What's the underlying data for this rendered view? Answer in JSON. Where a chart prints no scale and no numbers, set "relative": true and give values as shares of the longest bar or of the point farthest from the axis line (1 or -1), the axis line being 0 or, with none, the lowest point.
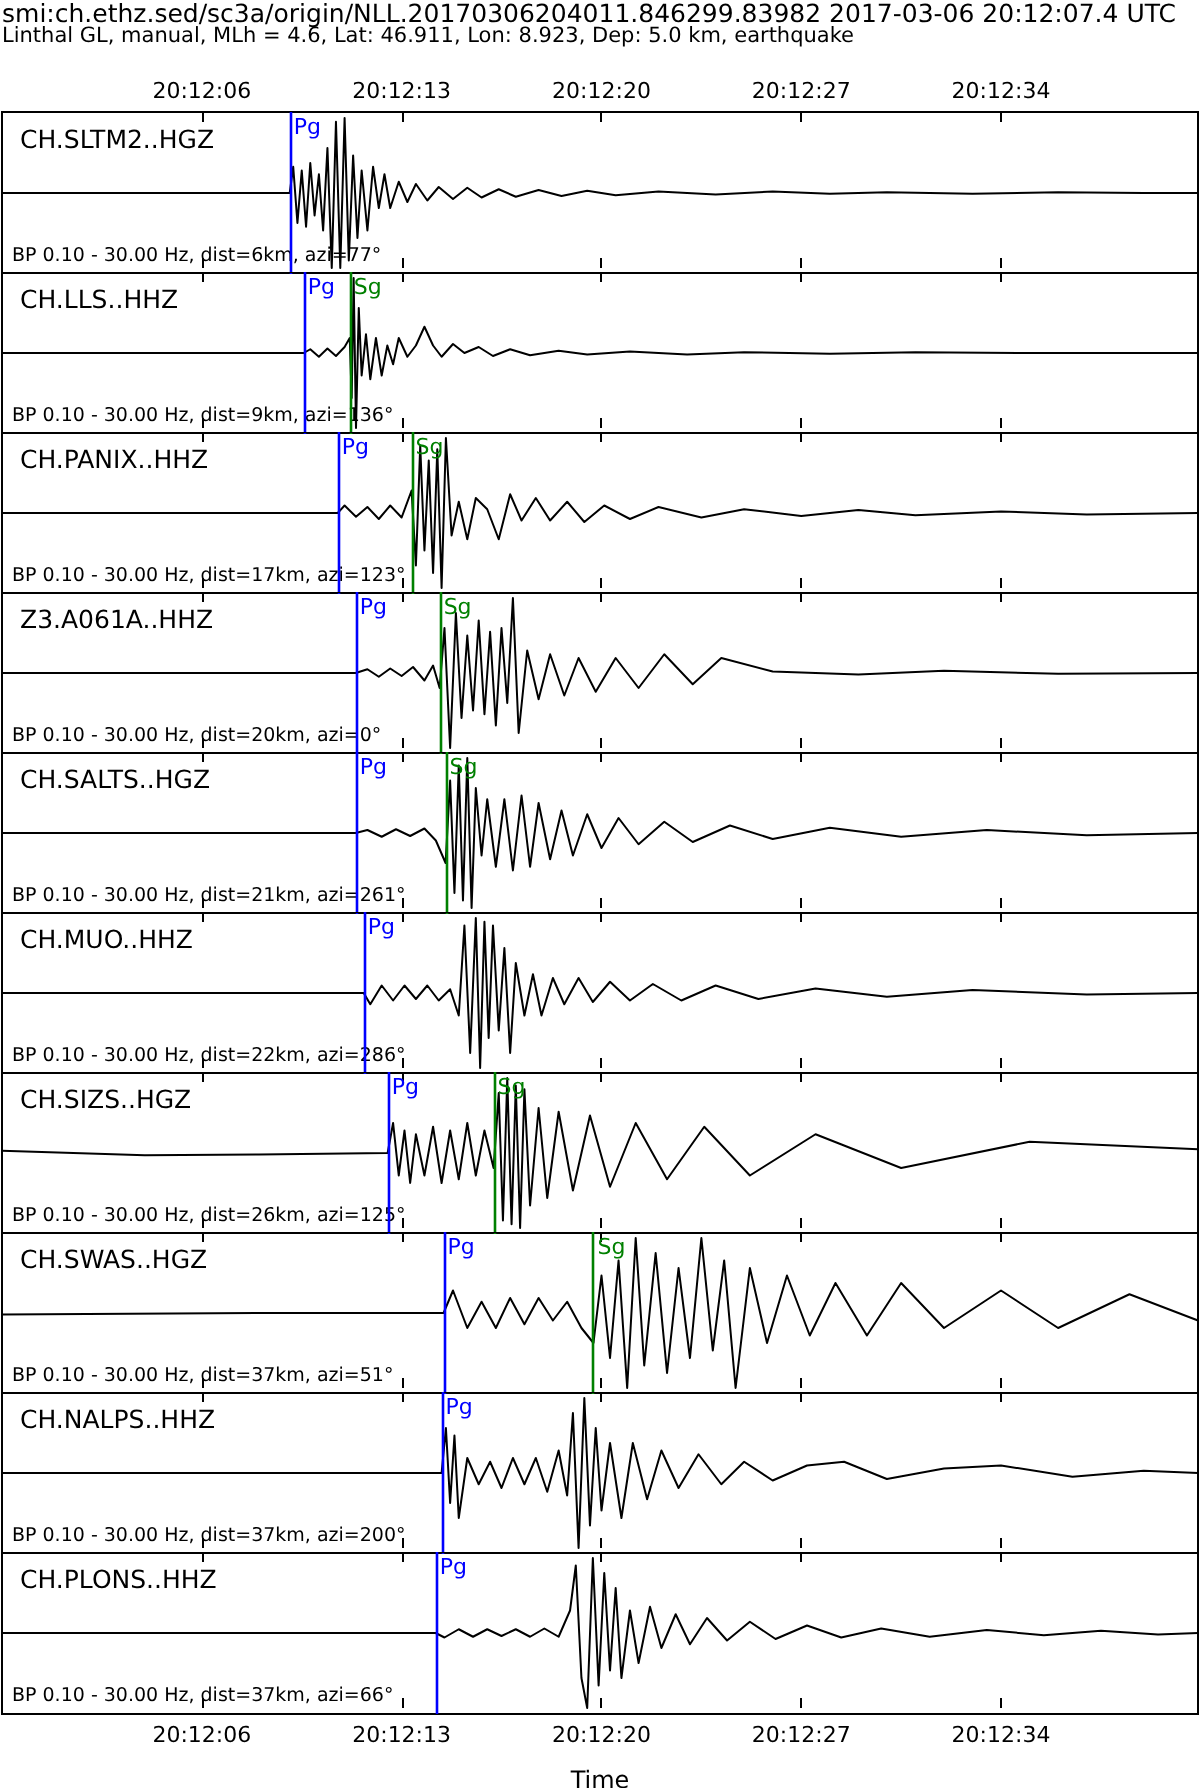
{
  "chart_data": [
    {
      "type": "other",
      "title": "smi:ch.ethz.sed/sc3a/origin/NLL.20170306204011.846299.83982 2017-03-06 20:12:07.4 UTC",
      "subtitle": "Linthal GL, manual, MLh = 4.6, Lat: 46.911, Lon: 8.923, Dep: 5.0 km, earthquake"
    },
    {
      "type": "line",
      "title": "CH.SLTM2..HGZ",
      "annotations": [
        "BP 0.10 - 30.00 Hz, dist=6km, azi=77°"
      ],
      "relative": true,
      "marker": "none",
      "line_style": "solid",
      "tick_labels": false,
      "xlim": [
        20.199722,
        20.211361
      ],
      "xticks": [
        {
          "value": 20.201667,
          "label": null
        },
        {
          "value": 20.203611,
          "label": null
        },
        {
          "value": 20.205556,
          "label": null
        },
        {
          "value": 20.2075,
          "label": null
        },
        {
          "value": 20.209444,
          "label": null
        }
      ],
      "x2lim": [
        20.199722,
        20.211361
      ],
      "x2ticks": [
        {
          "value": 20.201667,
          "label": "20:12:06"
        },
        {
          "value": 20.203611,
          "label": "20:12:13"
        },
        {
          "value": 20.205556,
          "label": "20:12:20"
        },
        {
          "value": 20.2075,
          "label": "20:12:27"
        },
        {
          "value": 20.209444,
          "label": "20:12:34"
        }
      ],
      "ref_lines": [
        {
          "axis": "x",
          "value": 20.202522,
          "label": "Pg",
          "color": "#0000ff"
        }
      ],
      "series": [
        {
          "color": "#000000",
          "x": [
            20.199722,
            20.202522,
            20.202556,
            20.202597,
            20.202639,
            20.202681,
            20.202722,
            20.202764,
            20.202806,
            20.202847,
            20.202889,
            20.202931,
            20.202972,
            20.203014,
            20.203056,
            20.203097,
            20.203139,
            20.203181,
            20.203222,
            20.203278,
            20.203333,
            20.203389,
            20.203444,
            20.2035,
            20.203583,
            20.203667,
            20.20375,
            20.203861,
            20.203972,
            20.204111,
            20.20425,
            20.204389,
            20.204556,
            20.204722,
            20.204944,
            20.205167,
            20.205417,
            20.205694,
            20.206111,
            20.206667,
            20.207222,
            20.207778,
            20.208333,
            20.209167,
            20.21,
            20.210833,
            20.211361
          ],
          "values": [
            0.5,
            0.5,
            0.675,
            0.3,
            0.65,
            0.275,
            0.7,
            0.35,
            0.625,
            0.25,
            0.8,
            0,
            0.975,
            0,
            1,
            0.05,
            0.75,
            0.2,
            0.65,
            0.25,
            0.675,
            0.4,
            0.625,
            0.4,
            0.575,
            0.44,
            0.56,
            0.45,
            0.54,
            0.46,
            0.535,
            0.47,
            0.525,
            0.475,
            0.52,
            0.48,
            0.515,
            0.485,
            0.51,
            0.49,
            0.51,
            0.495,
            0.505,
            0.495,
            0.505,
            0.5,
            0.5
          ]
        }
      ]
    },
    {
      "type": "line",
      "title": "CH.LLS..HHZ",
      "annotations": [
        "BP 0.10 - 30.00 Hz, dist=9km, azi=136°"
      ],
      "relative": true,
      "marker": "none",
      "line_style": "solid",
      "tick_labels": false,
      "xlim": [
        20.199722,
        20.211361
      ],
      "xticks": [
        {
          "value": 20.201667,
          "label": null
        },
        {
          "value": 20.203611,
          "label": null
        },
        {
          "value": 20.205556,
          "label": null
        },
        {
          "value": 20.2075,
          "label": null
        },
        {
          "value": 20.209444,
          "label": null
        }
      ],
      "ref_lines": [
        {
          "axis": "x",
          "value": 20.202658,
          "label": "Pg",
          "color": "#0000ff"
        },
        {
          "axis": "x",
          "value": 20.203106,
          "label": "Sg",
          "color": "#008000"
        }
      ],
      "series": [
        {
          "color": "#000000",
          "x": [
            20.199722,
            20.202658,
            20.202722,
            20.202806,
            20.202889,
            20.202972,
            20.203056,
            20.203106,
            20.203125,
            20.203144,
            20.203167,
            20.203194,
            20.203222,
            20.203264,
            20.203306,
            20.203361,
            20.203417,
            20.203472,
            20.203528,
            20.203583,
            20.203667,
            20.20375,
            20.203833,
            20.203917,
            20.204,
            20.204111,
            20.204222,
            20.204361,
            20.2045,
            20.204667,
            20.204861,
            20.205139,
            20.205417,
            20.205833,
            20.206389,
            20.206944,
            20.207778,
            20.208611,
            20.209722,
            20.211361
          ],
          "values": [
            0.5,
            0.5,
            0.525,
            0.475,
            0.53,
            0.48,
            0.54,
            0.6,
            0.2,
            1,
            0,
            0.8,
            0.35,
            0.625,
            0.325,
            0.6,
            0.35,
            0.55,
            0.425,
            0.6,
            0.475,
            0.55,
            0.675,
            0.55,
            0.475,
            0.56,
            0.5,
            0.54,
            0.48,
            0.525,
            0.485,
            0.515,
            0.49,
            0.51,
            0.49,
            0.505,
            0.495,
            0.505,
            0.5,
            0.5
          ]
        }
      ]
    },
    {
      "type": "line",
      "title": "CH.PANIX..HHZ",
      "annotations": [
        "BP 0.10 - 30.00 Hz, dist=17km, azi=123°"
      ],
      "relative": true,
      "marker": "none",
      "line_style": "solid",
      "tick_labels": false,
      "xlim": [
        20.199722,
        20.211361
      ],
      "xticks": [
        {
          "value": 20.201667,
          "label": null
        },
        {
          "value": 20.203611,
          "label": null
        },
        {
          "value": 20.205556,
          "label": null
        },
        {
          "value": 20.2075,
          "label": null
        },
        {
          "value": 20.209444,
          "label": null
        }
      ],
      "ref_lines": [
        {
          "axis": "x",
          "value": 20.202989,
          "label": "Pg",
          "color": "#0000ff"
        },
        {
          "axis": "x",
          "value": 20.203708,
          "label": "Sg",
          "color": "#008000"
        }
      ],
      "series": [
        {
          "color": "#000000",
          "x": [
            20.199722,
            20.202989,
            20.203056,
            20.203167,
            20.203278,
            20.203389,
            20.2035,
            20.203611,
            20.203708,
            20.20375,
            20.203792,
            20.203833,
            20.203875,
            20.203917,
            20.203958,
            20.204,
            20.204042,
            20.204097,
            20.204167,
            20.20425,
            20.204333,
            20.204444,
            20.204556,
            20.204667,
            20.204778,
            20.204917,
            20.205056,
            20.205222,
            20.205389,
            20.205583,
            20.205833,
            20.206111,
            20.206528,
            20.206944,
            20.2075,
            20.208056,
            20.208611,
            20.209444,
            20.210278,
            20.211361
          ],
          "values": [
            0.5,
            0.5,
            0.55,
            0.475,
            0.54,
            0.46,
            0.55,
            0.47,
            0.65,
            0.15,
            0.95,
            0.25,
            0.85,
            0.1,
            0.925,
            0,
            1,
            0.35,
            0.575,
            0.325,
            0.6,
            0.525,
            0.325,
            0.625,
            0.45,
            0.6,
            0.45,
            0.575,
            0.44,
            0.55,
            0.46,
            0.54,
            0.47,
            0.525,
            0.48,
            0.52,
            0.485,
            0.51,
            0.49,
            0.5
          ]
        }
      ]
    },
    {
      "type": "line",
      "title": "Z3.A061A..HHZ",
      "annotations": [
        "BP 0.10 - 30.00 Hz, dist=20km, azi=0°"
      ],
      "relative": true,
      "marker": "none",
      "line_style": "solid",
      "tick_labels": false,
      "xlim": [
        20.199722,
        20.211361
      ],
      "xticks": [
        {
          "value": 20.201667,
          "label": null
        },
        {
          "value": 20.203611,
          "label": null
        },
        {
          "value": 20.205556,
          "label": null
        },
        {
          "value": 20.2075,
          "label": null
        },
        {
          "value": 20.209444,
          "label": null
        }
      ],
      "ref_lines": [
        {
          "axis": "x",
          "value": 20.203164,
          "label": "Pg",
          "color": "#0000ff"
        },
        {
          "axis": "x",
          "value": 20.203981,
          "label": "Sg",
          "color": "#008000"
        }
      ],
      "series": [
        {
          "color": "#000000",
          "x": [
            20.199722,
            20.203164,
            20.203278,
            20.203389,
            20.2035,
            20.203611,
            20.203722,
            20.203833,
            20.203917,
            20.203981,
            20.204028,
            20.204083,
            20.204139,
            20.204194,
            20.20425,
            20.204306,
            20.204361,
            20.204417,
            20.204472,
            20.204528,
            20.204583,
            20.204639,
            20.204694,
            20.20475,
            20.204833,
            20.204944,
            20.205056,
            20.205194,
            20.205333,
            20.2055,
            20.205694,
            20.205917,
            20.206167,
            20.206444,
            20.206722,
            20.207222,
            20.208056,
            20.208889,
            20.21,
            20.211361
          ],
          "values": [
            0.5,
            0.5,
            0.525,
            0.475,
            0.53,
            0.48,
            0.54,
            0.45,
            0.55,
            0.4,
            0.8,
            0,
            0.9,
            0.2,
            0.75,
            0.25,
            0.85,
            0.225,
            0.775,
            0.15,
            0.8,
            0.3,
            1,
            0.1,
            0.65,
            0.325,
            0.625,
            0.35,
            0.6,
            0.375,
            0.6,
            0.4,
            0.625,
            0.425,
            0.6,
            0.51,
            0.49,
            0.515,
            0.495,
            0.5
          ]
        }
      ]
    },
    {
      "type": "line",
      "title": "CH.SALTS..HGZ",
      "annotations": [
        "BP 0.10 - 30.00 Hz, dist=21km, azi=261°"
      ],
      "relative": true,
      "marker": "none",
      "line_style": "solid",
      "tick_labels": false,
      "xlim": [
        20.199722,
        20.211361
      ],
      "xticks": [
        {
          "value": 20.201667,
          "label": null
        },
        {
          "value": 20.203611,
          "label": null
        },
        {
          "value": 20.205556,
          "label": null
        },
        {
          "value": 20.2075,
          "label": null
        },
        {
          "value": 20.209444,
          "label": null
        }
      ],
      "ref_lines": [
        {
          "axis": "x",
          "value": 20.203164,
          "label": "Pg",
          "color": "#0000ff"
        },
        {
          "axis": "x",
          "value": 20.204039,
          "label": "Sg",
          "color": "#008000"
        }
      ],
      "series": [
        {
          "color": "#000000",
          "x": [
            20.199722,
            20.203164,
            20.203278,
            20.203417,
            20.203556,
            20.203694,
            20.203833,
            20.203944,
            20.204039,
            20.204083,
            20.204125,
            20.204167,
            20.204208,
            20.20425,
            20.204292,
            20.204333,
            20.204389,
            20.204444,
            20.204528,
            20.204611,
            20.204694,
            20.204778,
            20.204861,
            20.204944,
            20.205056,
            20.205167,
            20.205278,
            20.205417,
            20.205556,
            20.205722,
            20.205917,
            20.206167,
            20.206444,
            20.206806,
            20.207222,
            20.207778,
            20.208472,
            20.209306,
            20.210278,
            20.211361
          ],
          "values": [
            0.5,
            0.5,
            0.52,
            0.475,
            0.525,
            0.48,
            0.53,
            0.45,
            0.3,
            0.85,
            0.1,
            0.95,
            0.05,
            1,
            0,
            0.8,
            0.35,
            0.725,
            0.275,
            0.725,
            0.25,
            0.75,
            0.275,
            0.7,
            0.325,
            0.65,
            0.35,
            0.625,
            0.4,
            0.6,
            0.425,
            0.575,
            0.44,
            0.55,
            0.46,
            0.535,
            0.475,
            0.52,
            0.485,
            0.5
          ]
        }
      ]
    },
    {
      "type": "line",
      "title": "CH.MUO..HHZ",
      "annotations": [
        "BP 0.10 - 30.00 Hz, dist=22km, azi=286°"
      ],
      "relative": true,
      "marker": "none",
      "line_style": "solid",
      "tick_labels": false,
      "xlim": [
        20.199722,
        20.211361
      ],
      "xticks": [
        {
          "value": 20.201667,
          "label": null
        },
        {
          "value": 20.203611,
          "label": null
        },
        {
          "value": 20.205556,
          "label": null
        },
        {
          "value": 20.2075,
          "label": null
        },
        {
          "value": 20.209444,
          "label": null
        }
      ],
      "ref_lines": [
        {
          "axis": "x",
          "value": 20.203242,
          "label": "Pg",
          "color": "#0000ff"
        }
      ],
      "series": [
        {
          "color": "#000000",
          "x": [
            20.199722,
            20.203242,
            20.203306,
            20.203417,
            20.203528,
            20.203639,
            20.20375,
            20.203861,
            20.203972,
            20.204083,
            20.204167,
            20.204222,
            20.204278,
            20.204333,
            20.204375,
            20.204417,
            20.204458,
            20.2045,
            20.204556,
            20.204611,
            20.204667,
            20.204722,
            20.204806,
            20.204889,
            20.204972,
            20.205083,
            20.205194,
            20.205333,
            20.205472,
            20.205639,
            20.205833,
            20.206056,
            20.206333,
            20.206667,
            20.207083,
            20.207639,
            20.208333,
            20.209167,
            20.210278,
            20.211361
          ],
          "values": [
            0.5,
            0.5,
            0.425,
            0.55,
            0.45,
            0.55,
            0.46,
            0.55,
            0.45,
            0.525,
            0.35,
            0.95,
            0.1,
            1,
            0,
            0.975,
            0.2,
            0.95,
            0.25,
            0.8,
            0.1,
            0.7,
            0.35,
            0.625,
            0.35,
            0.6,
            0.425,
            0.6,
            0.44,
            0.575,
            0.45,
            0.56,
            0.45,
            0.55,
            0.46,
            0.53,
            0.475,
            0.52,
            0.49,
            0.5
          ]
        }
      ]
    },
    {
      "type": "line",
      "title": "CH.SIZS..HGZ",
      "annotations": [
        "BP 0.10 - 30.00 Hz, dist=26km, azi=125°"
      ],
      "relative": true,
      "marker": "none",
      "line_style": "solid",
      "tick_labels": false,
      "xlim": [
        20.199722,
        20.211361
      ],
      "xticks": [
        {
          "value": 20.201667,
          "label": null
        },
        {
          "value": 20.203611,
          "label": null
        },
        {
          "value": 20.205556,
          "label": null
        },
        {
          "value": 20.2075,
          "label": null
        },
        {
          "value": 20.209444,
          "label": null
        }
      ],
      "ref_lines": [
        {
          "axis": "x",
          "value": 20.203475,
          "label": "Pg",
          "color": "#0000ff"
        },
        {
          "axis": "x",
          "value": 20.204506,
          "label": "Sg",
          "color": "#008000"
        }
      ],
      "series": [
        {
          "color": "#000000",
          "x": [
            20.199722,
            20.201111,
            20.202222,
            20.203475,
            20.203528,
            20.203583,
            20.203639,
            20.203694,
            20.20375,
            20.203833,
            20.203917,
            20.204,
            20.204083,
            20.204167,
            20.20425,
            20.204333,
            20.204417,
            20.204506,
            20.204556,
            20.204597,
            20.204639,
            20.204681,
            20.204722,
            20.204764,
            20.204806,
            20.204861,
            20.204944,
            20.205028,
            20.205139,
            20.205278,
            20.205444,
            20.205639,
            20.205889,
            20.206194,
            20.206556,
            20.207,
            20.207639,
            20.208472,
            20.209722,
            20.211361
          ],
          "values": [
            0.515,
            0.485,
            0.49,
            0.5,
            0.7,
            0.35,
            0.65,
            0.3,
            0.625,
            0.35,
            0.675,
            0.3,
            0.65,
            0.325,
            0.7,
            0.35,
            0.65,
            0.4,
            0.9,
            0.05,
            1,
            0.025,
            0.95,
            0,
            0.925,
            0.15,
            0.8,
            0.2,
            0.775,
            0.25,
            0.75,
            0.275,
            0.7,
            0.325,
            0.675,
            0.35,
            0.625,
            0.4,
            0.575,
            0.525
          ]
        }
      ]
    },
    {
      "type": "line",
      "title": "CH.SWAS..HGZ",
      "annotations": [
        "BP 0.10 - 30.00 Hz, dist=37km, azi=51°"
      ],
      "relative": true,
      "marker": "none",
      "line_style": "solid",
      "tick_labels": false,
      "xlim": [
        20.199722,
        20.211361
      ],
      "xticks": [
        {
          "value": 20.201667,
          "label": null
        },
        {
          "value": 20.203611,
          "label": null
        },
        {
          "value": 20.205556,
          "label": null
        },
        {
          "value": 20.2075,
          "label": null
        },
        {
          "value": 20.209444,
          "label": null
        }
      ],
      "ref_lines": [
        {
          "axis": "x",
          "value": 20.204019,
          "label": "Pg",
          "color": "#0000ff"
        },
        {
          "axis": "x",
          "value": 20.205478,
          "label": "Sg",
          "color": "#008000"
        }
      ],
      "series": [
        {
          "color": "#000000",
          "x": [
            20.199722,
            20.202222,
            20.204019,
            20.204111,
            20.20425,
            20.204389,
            20.204528,
            20.204667,
            20.204806,
            20.204944,
            20.205083,
            20.205222,
            20.205361,
            20.205478,
            20.205556,
            20.205639,
            20.205722,
            20.205806,
            20.205889,
            20.205972,
            20.206083,
            20.206194,
            20.206306,
            20.206417,
            20.206528,
            20.206639,
            20.20675,
            20.206861,
            20.207,
            20.207167,
            20.207361,
            20.207583,
            20.207833,
            20.208139,
            20.208472,
            20.208889,
            20.209444,
            20.21,
            20.210694,
            20.211361
          ],
          "values": [
            0.49,
            0.5,
            0.5,
            0.65,
            0.4,
            0.575,
            0.4,
            0.6,
            0.425,
            0.6,
            0.45,
            0.575,
            0.4,
            0.3,
            0.75,
            0.2,
            0.85,
            0,
            1,
            0.15,
            0.9,
            0.1,
            0.8,
            0.2,
            1,
            0.25,
            0.85,
            0,
            0.8,
            0.3,
            0.75,
            0.35,
            0.7,
            0.35,
            0.7,
            0.4,
            0.65,
            0.4,
            0.625,
            0.45
          ]
        }
      ]
    },
    {
      "type": "line",
      "title": "CH.NALPS..HHZ",
      "annotations": [
        "BP 0.10 - 30.00 Hz, dist=37km, azi=200°"
      ],
      "relative": true,
      "marker": "none",
      "line_style": "solid",
      "tick_labels": false,
      "xlim": [
        20.199722,
        20.211361
      ],
      "xticks": [
        {
          "value": 20.201667,
          "label": null
        },
        {
          "value": 20.203611,
          "label": null
        },
        {
          "value": 20.205556,
          "label": null
        },
        {
          "value": 20.2075,
          "label": null
        },
        {
          "value": 20.209444,
          "label": null
        }
      ],
      "ref_lines": [
        {
          "axis": "x",
          "value": 20.204,
          "label": "Pg",
          "color": "#0000ff"
        }
      ],
      "series": [
        {
          "color": "#000000",
          "x": [
            20.199722,
            20.204,
            20.204042,
            20.204083,
            20.204125,
            20.204167,
            20.20425,
            20.204361,
            20.204472,
            20.204583,
            20.204694,
            20.204806,
            20.204917,
            20.205028,
            20.205139,
            20.205222,
            20.205278,
            20.205333,
            20.205389,
            20.205444,
            20.2055,
            20.205556,
            20.205639,
            20.20575,
            20.205861,
            20.206,
            20.206139,
            20.206306,
            20.2065,
            20.206722,
            20.206944,
            20.207222,
            20.207556,
            20.207917,
            20.208333,
            20.208889,
            20.209444,
            20.210139,
            20.210833,
            20.211361
          ],
          "values": [
            0.5,
            0.5,
            0.8,
            0.3,
            0.75,
            0.2,
            0.6,
            0.425,
            0.575,
            0.4,
            0.6,
            0.425,
            0.6,
            0.375,
            0.65,
            0.35,
            0.9,
            0,
            1,
            0.15,
            0.8,
            0.25,
            0.7,
            0.2,
            0.7,
            0.325,
            0.65,
            0.4,
            0.625,
            0.425,
            0.575,
            0.45,
            0.55,
            0.575,
            0.46,
            0.53,
            0.55,
            0.475,
            0.515,
            0.5
          ]
        }
      ]
    },
    {
      "type": "line",
      "title": "CH.PLONS..HHZ",
      "annotations": [
        "BP 0.10 - 30.00 Hz, dist=37km, azi=66°"
      ],
      "relative": true,
      "marker": "none",
      "line_style": "solid",
      "tick_labels": "x",
      "xlabel": "Time",
      "xlim": [
        20.199722,
        20.211361
      ],
      "xticks": [
        {
          "value": 20.201667,
          "label": "20:12:06"
        },
        {
          "value": 20.203611,
          "label": "20:12:13"
        },
        {
          "value": 20.205556,
          "label": "20:12:20"
        },
        {
          "value": 20.2075,
          "label": "20:12:27"
        },
        {
          "value": 20.209444,
          "label": "20:12:34"
        }
      ],
      "ref_lines": [
        {
          "axis": "x",
          "value": 20.203942,
          "label": "Pg",
          "color": "#0000ff"
        }
      ],
      "series": [
        {
          "color": "#000000",
          "x": [
            20.199722,
            20.203942,
            20.204028,
            20.204167,
            20.204306,
            20.204444,
            20.204583,
            20.204722,
            20.204861,
            20.205,
            20.205139,
            20.20525,
            20.205306,
            20.205361,
            20.205417,
            20.205472,
            20.205528,
            20.205583,
            20.205639,
            20.205694,
            20.20575,
            20.205833,
            20.205917,
            20.206028,
            20.206139,
            20.206278,
            20.206417,
            20.206583,
            20.206778,
            20.207,
            20.20725,
            20.207556,
            20.207889,
            20.208278,
            20.20875,
            20.209306,
            20.209861,
            20.210417,
            20.210972,
            20.211361
          ],
          "values": [
            0.5,
            0.5,
            0.47,
            0.525,
            0.475,
            0.525,
            0.48,
            0.525,
            0.475,
            0.53,
            0.475,
            0.65,
            0.95,
            0.2,
            0,
            1,
            0.15,
            0.9,
            0.25,
            0.8,
            0.2,
            0.65,
            0.3,
            0.675,
            0.4,
            0.625,
            0.425,
            0.6,
            0.45,
            0.575,
            0.46,
            0.55,
            0.47,
            0.53,
            0.475,
            0.52,
            0.485,
            0.515,
            0.49,
            0.5
          ]
        }
      ]
    }
  ]
}
